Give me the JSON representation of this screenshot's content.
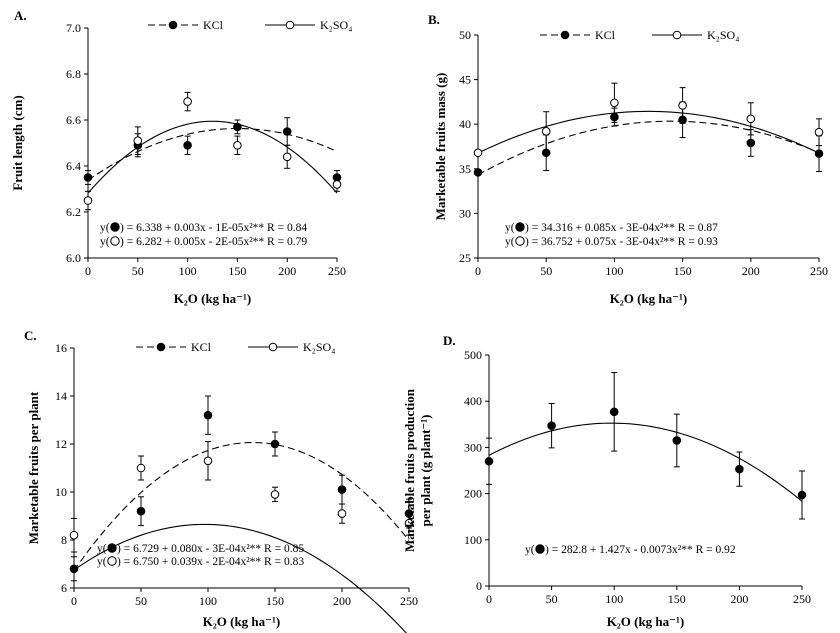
{
  "chart_data": [
    {
      "panel_label": "A.",
      "type": "scatter",
      "xlabel": "K₂O (kg ha⁻¹)",
      "ylabel": "Fruit length (cm)",
      "xlim": [
        0,
        250
      ],
      "ylim": [
        6.0,
        7.0
      ],
      "xticks": [
        "0",
        "50",
        "100",
        "150",
        "200",
        "250"
      ],
      "yticks": [
        "6.0",
        "6.2",
        "6.4",
        "6.6",
        "6.8",
        "7.0"
      ],
      "legend": [
        {
          "symbol": "●",
          "label": "KCl"
        },
        {
          "symbol": "○",
          "label": "K₂SO₄"
        }
      ],
      "x": [
        0,
        50,
        100,
        150,
        200,
        250
      ],
      "series": [
        {
          "name": "KCl",
          "marker": "filled",
          "line": "dashed",
          "values": [
            6.35,
            6.49,
            6.49,
            6.57,
            6.55,
            6.35
          ],
          "errors": [
            0.03,
            0.05,
            0.04,
            0.03,
            0.06,
            0.03
          ],
          "fit": [
            6.338,
            0.003,
            -1e-05
          ]
        },
        {
          "name": "K₂SO₄",
          "marker": "open",
          "line": "solid",
          "values": [
            6.25,
            6.51,
            6.68,
            6.49,
            6.44,
            6.32
          ],
          "errors": [
            0.04,
            0.06,
            0.04,
            0.04,
            0.05,
            0.03
          ],
          "fit": [
            6.282,
            0.005,
            -2e-05
          ]
        }
      ],
      "equations": [
        {
          "symbol": "●",
          "prefix": "y(",
          "text": ") = 6.338 + 0.003x - 1E-05x²**    R = 0.84"
        },
        {
          "symbol": "○",
          "prefix": "y(",
          "text": ") = 6.282 + 0.005x - 2E-05x²**    R = 0.79"
        }
      ]
    },
    {
      "panel_label": "B.",
      "type": "scatter",
      "xlabel": "K₂O (kg ha⁻¹)",
      "ylabel": "Marketable fruits mass (g)",
      "xlim": [
        0,
        250
      ],
      "ylim": [
        25,
        50
      ],
      "xticks": [
        "0",
        "50",
        "100",
        "150",
        "200",
        "250"
      ],
      "yticks": [
        "25",
        "30",
        "35",
        "40",
        "45",
        "50"
      ],
      "legend": [
        {
          "symbol": "●",
          "label": "KCl"
        },
        {
          "symbol": "○",
          "label": "K₂SO₄"
        }
      ],
      "x": [
        0,
        50,
        100,
        150,
        200,
        250
      ],
      "series": [
        {
          "name": "KCl",
          "marker": "filled",
          "line": "dashed",
          "values": [
            34.6,
            36.8,
            40.8,
            40.5,
            37.9,
            36.7
          ],
          "errors": [
            0.3,
            2.0,
            1.0,
            2.0,
            1.5,
            2.0
          ],
          "fit": [
            34.316,
            0.085,
            -0.0003
          ]
        },
        {
          "name": "K₂SO₄",
          "marker": "open",
          "line": "solid",
          "values": [
            36.8,
            39.2,
            42.4,
            42.1,
            40.6,
            39.1
          ],
          "errors": [
            0.3,
            2.2,
            2.2,
            2.0,
            1.8,
            1.5
          ],
          "fit": [
            36.752,
            0.075,
            -0.0003
          ]
        }
      ],
      "equations": [
        {
          "symbol": "●",
          "prefix": "y(",
          "text": ") = 34.316 + 0.085x - 3E-04x²**    R = 0.87"
        },
        {
          "symbol": "○",
          "prefix": "y(",
          "text": ") = 36.752 + 0.075x - 3E-04x²**    R = 0.93"
        }
      ]
    },
    {
      "panel_label": "C.",
      "type": "scatter",
      "xlabel": "K₂O (kg ha⁻¹)",
      "ylabel": "Marketable fruits per plant",
      "xlim": [
        0,
        250
      ],
      "ylim": [
        6,
        16
      ],
      "xticks": [
        "0",
        "50",
        "100",
        "150",
        "200",
        "250"
      ],
      "yticks": [
        "6",
        "8",
        "10",
        "12",
        "14",
        "16"
      ],
      "legend": [
        {
          "symbol": "●",
          "label": "KCl"
        },
        {
          "symbol": "○",
          "label": "K₂SO₄"
        }
      ],
      "x": [
        0,
        50,
        100,
        150,
        200,
        250
      ],
      "series": [
        {
          "name": "KCl",
          "marker": "filled",
          "line": "dashed",
          "values": [
            6.8,
            9.2,
            13.2,
            12.0,
            10.1,
            9.1
          ],
          "errors": [
            0.5,
            0.6,
            0.8,
            0.5,
            0.6,
            0.6
          ],
          "fit": [
            6.729,
            0.08,
            -0.0003
          ]
        },
        {
          "name": "K₂SO₄",
          "marker": "open",
          "line": "solid",
          "values": [
            8.2,
            11.0,
            11.3,
            9.9,
            9.1,
            8.7
          ],
          "errors": [
            0.7,
            0.5,
            0.8,
            0.3,
            0.4,
            0.5
          ],
          "fit": [
            6.75,
            0.039,
            -0.0002
          ]
        }
      ],
      "equations": [
        {
          "symbol": "●",
          "prefix": "y(",
          "text": ") = 6.729 + 0.080x - 3E-04x²**    R = 0.85"
        },
        {
          "symbol": "○",
          "prefix": "y(",
          "text": ") = 6.750 + 0.039x - 2E-04x²**    R = 0.83"
        }
      ]
    },
    {
      "panel_label": "D.",
      "type": "scatter",
      "xlabel": "K₂O (kg ha⁻¹)",
      "ylabel": "Marketable fruits production per plant (g plant⁻¹)",
      "ylabel_lines": [
        "Marketable fruits production",
        "per plant (g plant⁻¹)"
      ],
      "xlim": [
        0,
        250
      ],
      "ylim": [
        0,
        500
      ],
      "xticks": [
        "0",
        "50",
        "100",
        "150",
        "200",
        "250"
      ],
      "yticks": [
        "0",
        "100",
        "200",
        "300",
        "400",
        "500"
      ],
      "legend": [],
      "x": [
        0,
        50,
        100,
        150,
        200,
        250
      ],
      "series": [
        {
          "name": "",
          "marker": "filled",
          "line": "solid",
          "values": [
            270,
            347,
            377,
            315,
            253,
            197
          ],
          "errors": [
            50,
            48,
            85,
            57,
            37,
            52
          ],
          "fit": [
            282.8,
            1.427,
            -0.0073
          ]
        }
      ],
      "equations": [
        {
          "symbol": "●",
          "prefix": "y(",
          "text": ") = 282.8 + 1.427x - 0.0073x²**    R = 0.92"
        }
      ]
    }
  ]
}
